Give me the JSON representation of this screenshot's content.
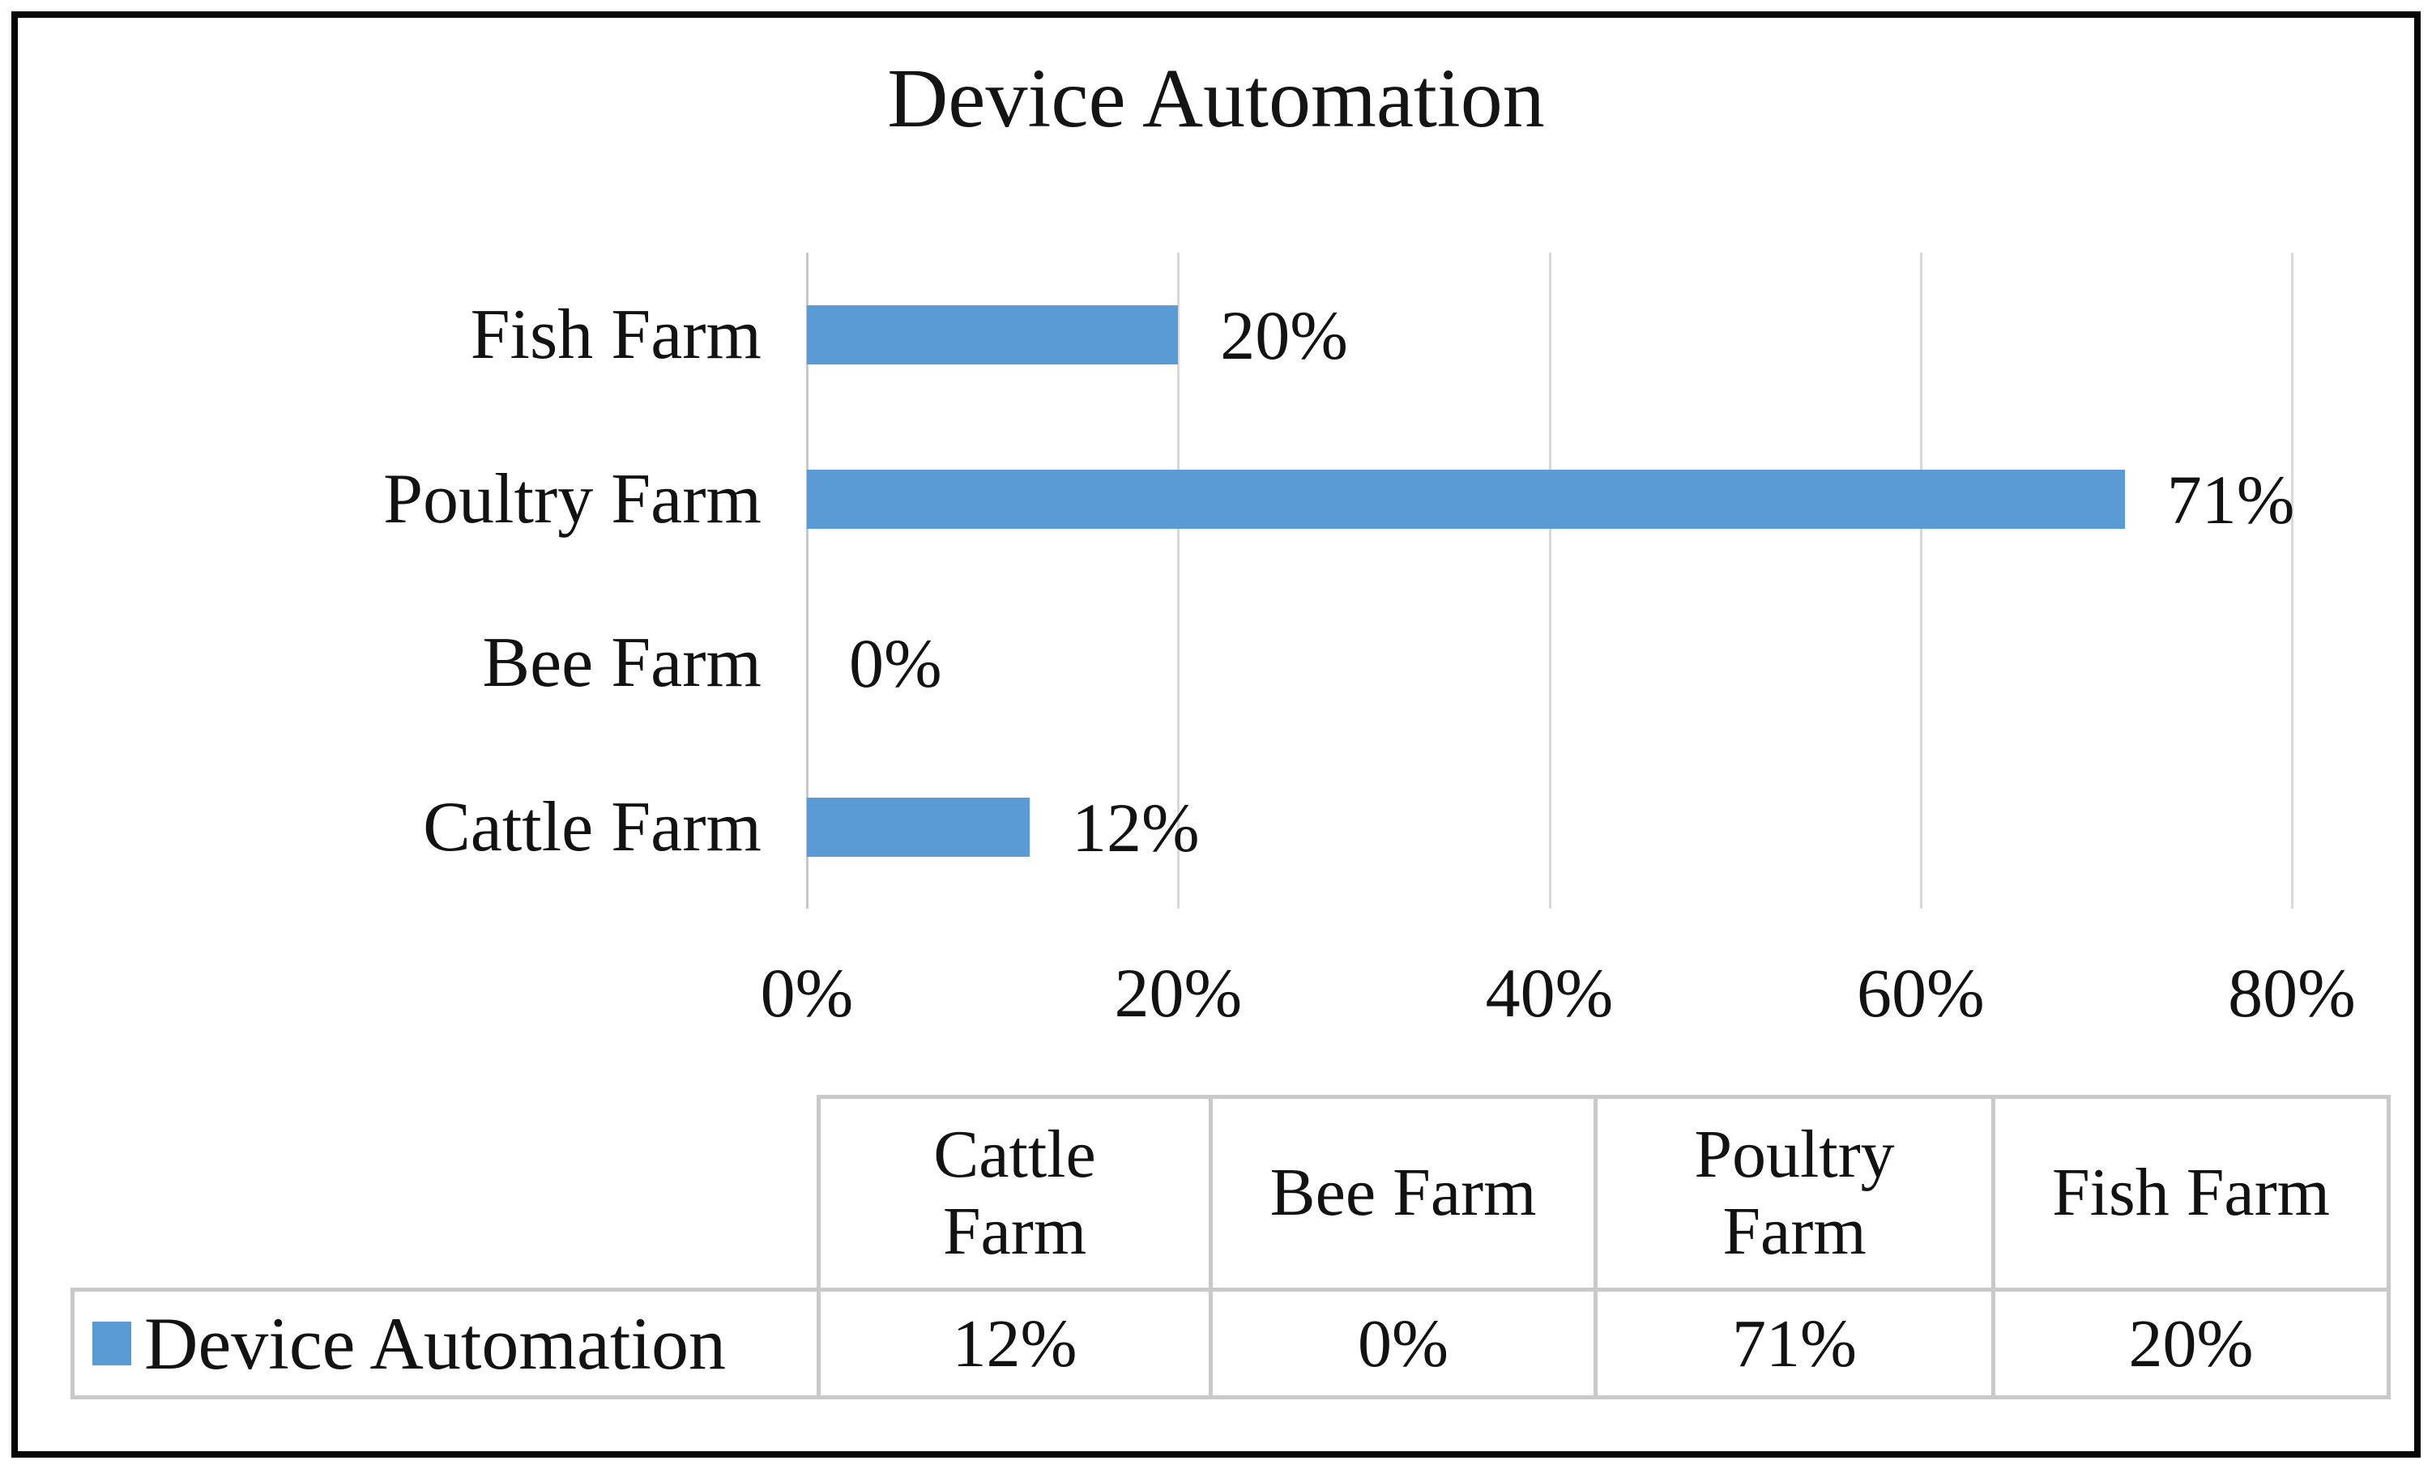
{
  "chart_data": {
    "type": "bar",
    "orientation": "horizontal",
    "title": "Device Automation",
    "categories": [
      "Fish Farm",
      "Poultry Farm",
      "Bee Farm",
      "Cattle Farm"
    ],
    "values": [
      20,
      71,
      0,
      12
    ],
    "data_labels": [
      "20%",
      "71%",
      "0%",
      "12%"
    ],
    "x_ticks": [
      "0%",
      "20%",
      "40%",
      "60%",
      "80%"
    ],
    "xlim": [
      0,
      80
    ],
    "grid": true,
    "legend_position": "bottom-table",
    "series": [
      {
        "name": "Device Automation",
        "values": [
          20,
          71,
          0,
          12
        ]
      }
    ]
  },
  "legend": {
    "label": "Device Automation",
    "swatch_color": "#5B9BD5"
  },
  "table": {
    "columns": [
      "Cattle Farm",
      "Bee Farm",
      "Poultry Farm",
      "Fish Farm"
    ],
    "row_label": "Device Automation",
    "values": [
      "12%",
      "0%",
      "71%",
      "20%"
    ]
  },
  "colors": {
    "bar": "#5B9BD5",
    "gridline": "#D8D8D8",
    "axis_line": "#C7C7C7",
    "table_border": "#C9C9C9",
    "outer_border": "#060606",
    "text": "#121212"
  }
}
